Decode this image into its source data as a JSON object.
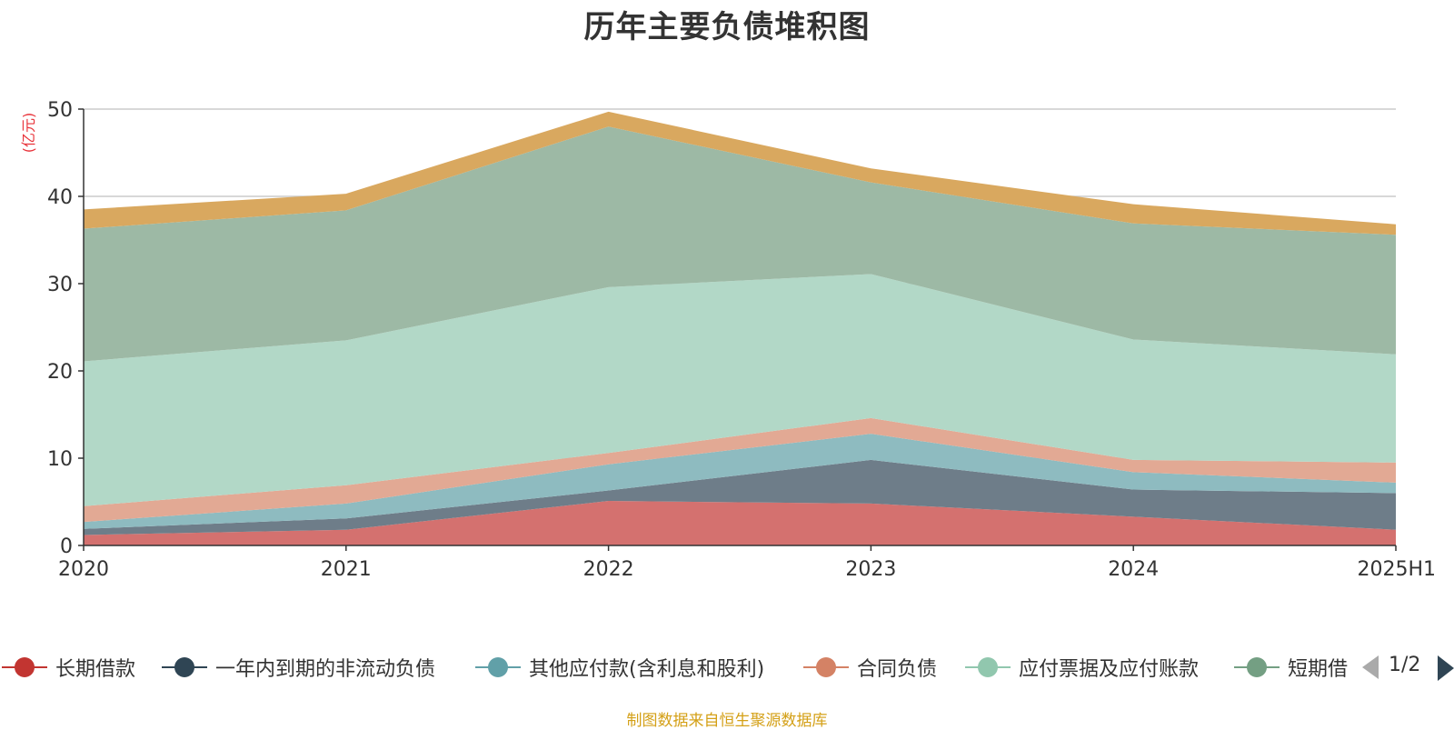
{
  "chart_data": {
    "type": "area",
    "stacked": true,
    "title": "历年主要负债堆积图",
    "ylabel": "(亿元)",
    "xlabel": "",
    "categories": [
      "2020",
      "2021",
      "2022",
      "2023",
      "2024",
      "2025H1"
    ],
    "ylim": [
      0,
      50
    ],
    "yticks": [
      0,
      10,
      20,
      30,
      40,
      50
    ],
    "grid": true,
    "series": [
      {
        "name": "长期借款",
        "values": [
          1.2,
          1.8,
          5.1,
          4.8,
          3.3,
          1.8
        ],
        "color": "#c23531",
        "fill": "#d4716f"
      },
      {
        "name": "一年内到期的非流动负债",
        "values": [
          0.7,
          1.3,
          1.2,
          5.0,
          3.1,
          4.2
        ],
        "color": "#2f4554",
        "fill": "#6e7d89"
      },
      {
        "name": "其他应付款(含利息和股利)",
        "values": [
          0.8,
          1.7,
          3.0,
          3.0,
          2.0,
          1.2
        ],
        "color": "#61a0a8",
        "fill": "#8ebbc0"
      },
      {
        "name": "合同负债",
        "values": [
          1.8,
          2.1,
          1.3,
          1.8,
          1.4,
          2.3
        ],
        "color": "#d48265",
        "fill": "#e2a994"
      },
      {
        "name": "应付票据及应付账款",
        "values": [
          16.6,
          16.6,
          19.0,
          16.5,
          13.8,
          12.4
        ],
        "color": "#91c7ae",
        "fill": "#b2d8c7"
      },
      {
        "name": "短期借款",
        "values": [
          15.2,
          14.9,
          18.4,
          10.5,
          13.3,
          13.7
        ],
        "color": "#749f83",
        "fill": "#9db9a5"
      },
      {
        "name": "",
        "values": [
          2.2,
          1.9,
          1.7,
          1.6,
          2.2,
          1.2
        ],
        "color": "#ca8622",
        "fill": "#d9a85f"
      }
    ],
    "legend": {
      "position": "bottom",
      "visible_items": [
        "长期借款",
        "一年内到期的非流动负债",
        "其他应付款(含利息和股利)",
        "合同负债",
        "应付票据及应付账款",
        "短期借款"
      ],
      "truncated_last": "短期借"
    }
  },
  "legend_labels": [
    "长期借款",
    "一年内到期的非流动负债",
    "其他应付款(含利息和股利)",
    "合同负债",
    "应付票据及应付账款",
    "短期借"
  ],
  "pager": {
    "text": "1/2"
  },
  "source": "制图数据来自恒生聚源数据库",
  "colors": {
    "axis": "#333333",
    "grid": "#cccccc",
    "unit": "#e8333a",
    "source": "#d4a017"
  }
}
